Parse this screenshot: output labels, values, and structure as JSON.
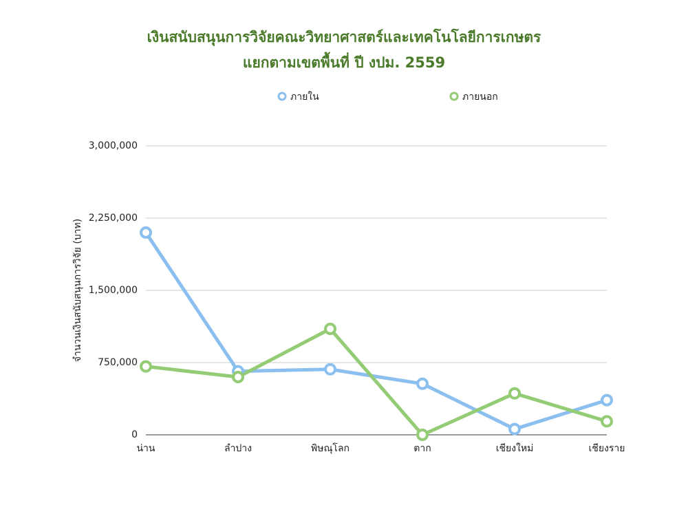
{
  "chart_data": {
    "type": "line",
    "title": [
      "เงินสนับสนุนการวิจัยคณะวิทยาศาสตร์และเทคโนโลยีการเกษตร",
      "แยกตามเขตพื้นที่ ปี งปม. 2559"
    ],
    "ylabel": "จำนวนเงินสนับสนุนการวิจัย (บาท)",
    "categories": [
      "น่าน",
      "ลำปาง",
      "พิษณุโลก",
      "ตาก",
      "เชียงใหม่",
      "เชียงราย"
    ],
    "series": [
      {
        "name": "ภายใน",
        "color": "#8bbfef",
        "values": [
          2100000,
          660000,
          680000,
          530000,
          60000,
          360000
        ]
      },
      {
        "name": "ภายนอก",
        "color": "#94cc75",
        "values": [
          710000,
          600000,
          1100000,
          0,
          430000,
          140000
        ]
      }
    ],
    "ylim": [
      0,
      3000000
    ],
    "yticks": [
      0,
      {
        "value": 750000,
        "label": "750,000"
      },
      {
        "value": 1500000,
        "label": "1,500,000"
      },
      {
        "value": 2250000,
        "label": "2,250,000"
      },
      {
        "value": 3000000,
        "label": "3,000,000"
      }
    ],
    "grid": true,
    "legend": "top"
  }
}
